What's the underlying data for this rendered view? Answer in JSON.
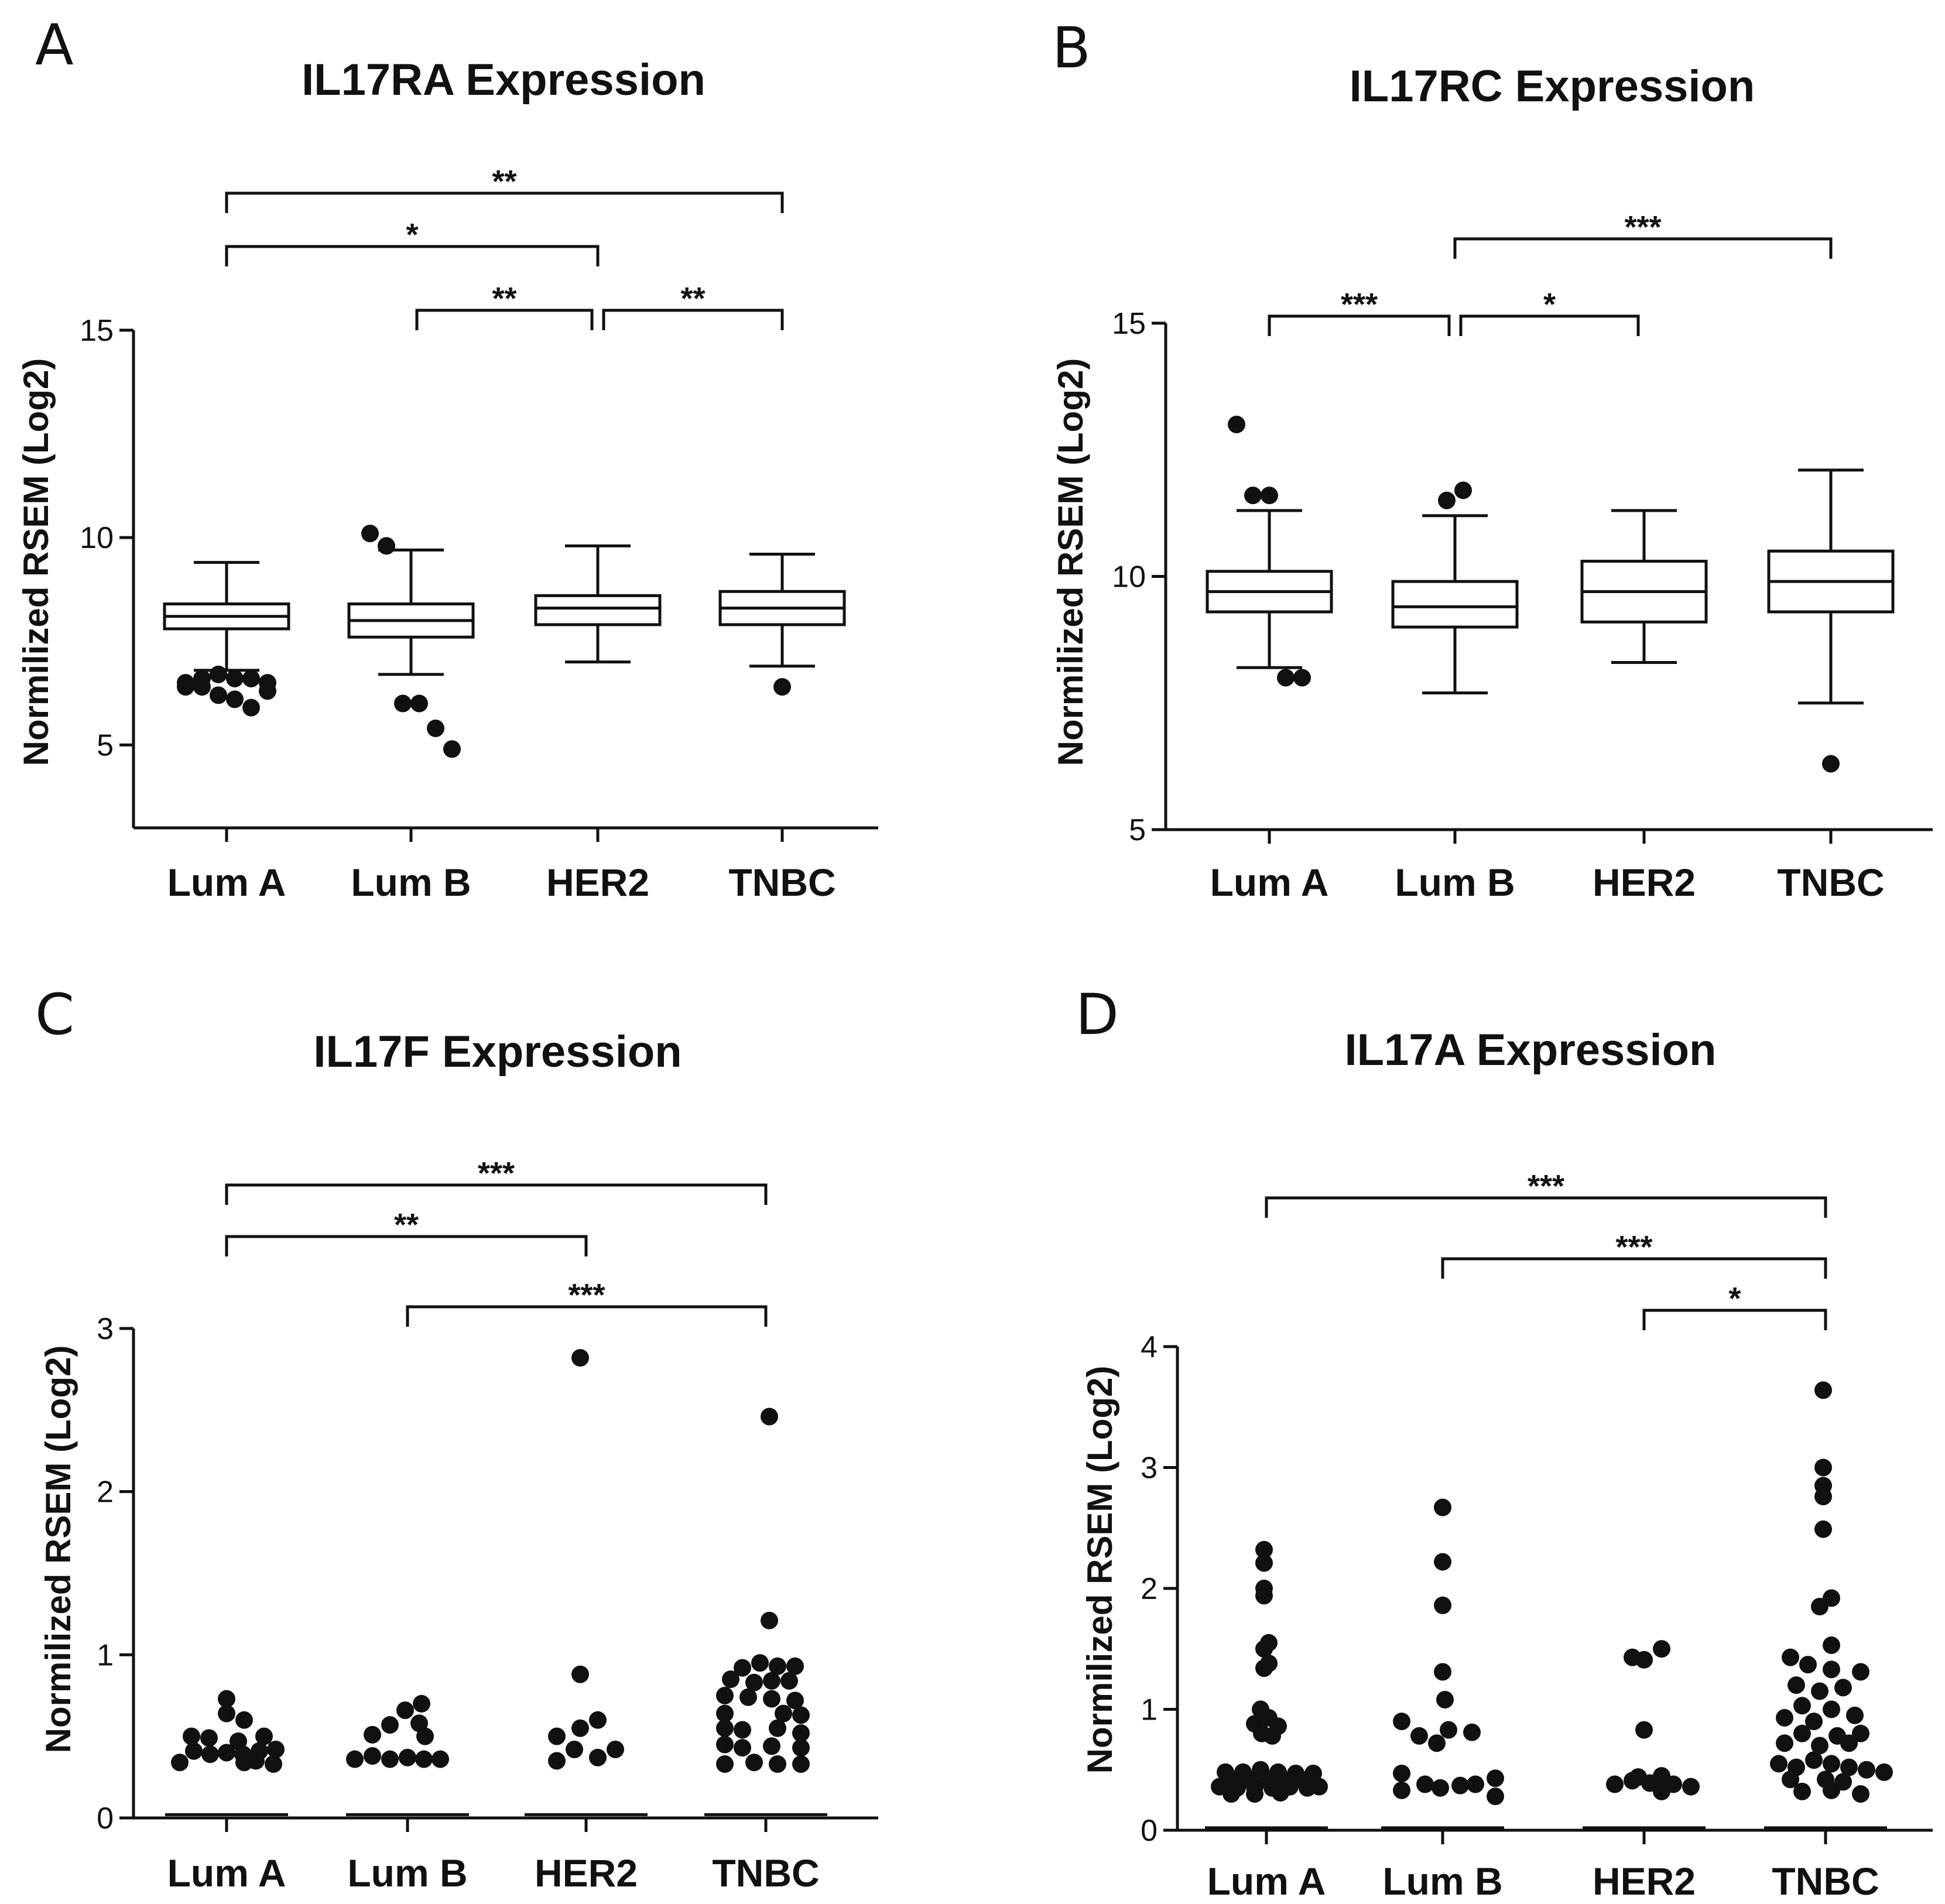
{
  "chart_data": [
    {
      "type": "box",
      "panel": "A",
      "title": "IL17RA Expression",
      "xlabel": "",
      "ylabel": "Normilized RSEM (Log2)",
      "ylim": [
        3,
        15
      ],
      "yticks": [
        5,
        10,
        15
      ],
      "categories": [
        "Lum A",
        "Lum B",
        "HER2",
        "TNBC"
      ],
      "boxes": [
        {
          "whisker_low": 6.8,
          "q1": 7.8,
          "median": 8.1,
          "q3": 8.4,
          "whisker_high": 9.4,
          "outliers": [
            6.5,
            6.6,
            6.7,
            6.6,
            6.6,
            6.5,
            6.4,
            6.4,
            6.2,
            6.1,
            5.9,
            6.3
          ]
        },
        {
          "whisker_low": 6.7,
          "q1": 7.6,
          "median": 8.0,
          "q3": 8.4,
          "whisker_high": 9.7,
          "outliers": [
            10.1,
            9.8,
            6.0,
            6.0,
            5.4,
            4.9
          ]
        },
        {
          "whisker_low": 7.0,
          "q1": 7.9,
          "median": 8.3,
          "q3": 8.6,
          "whisker_high": 9.8,
          "outliers": []
        },
        {
          "whisker_low": 6.9,
          "q1": 7.9,
          "median": 8.3,
          "q3": 8.7,
          "whisker_high": 9.6,
          "outliers": [
            6.4
          ]
        }
      ],
      "significance": [
        {
          "from": 0,
          "to": 3,
          "label": "**"
        },
        {
          "from": 0,
          "to": 2,
          "label": "*"
        },
        {
          "from": 1,
          "to": 2,
          "label": "**"
        },
        {
          "from": 2,
          "to": 3,
          "label": "**"
        }
      ]
    },
    {
      "type": "box",
      "panel": "B",
      "title": "IL17RC Expression",
      "xlabel": "",
      "ylabel": "Normilized RSEM (Log2)",
      "ylim": [
        5,
        15
      ],
      "yticks": [
        5,
        10,
        15
      ],
      "categories": [
        "Lum A",
        "Lum B",
        "HER2",
        "TNBC"
      ],
      "boxes": [
        {
          "whisker_low": 8.2,
          "q1": 9.3,
          "median": 9.7,
          "q3": 10.1,
          "whisker_high": 11.3,
          "outliers": [
            13.0,
            11.6,
            11.6,
            8.0,
            8.0
          ]
        },
        {
          "whisker_low": 7.7,
          "q1": 9.0,
          "median": 9.4,
          "q3": 9.9,
          "whisker_high": 11.2,
          "outliers": [
            11.5,
            11.7
          ]
        },
        {
          "whisker_low": 8.3,
          "q1": 9.1,
          "median": 9.7,
          "q3": 10.3,
          "whisker_high": 11.3,
          "outliers": []
        },
        {
          "whisker_low": 7.5,
          "q1": 9.3,
          "median": 9.9,
          "q3": 10.5,
          "whisker_high": 12.1,
          "outliers": [
            6.3
          ]
        }
      ],
      "significance": [
        {
          "from": 1,
          "to": 3,
          "label": "***"
        },
        {
          "from": 0,
          "to": 1,
          "label": "***"
        },
        {
          "from": 1,
          "to": 2,
          "label": "*"
        }
      ]
    },
    {
      "type": "scatter",
      "panel": "C",
      "title": "IL17F Expression",
      "xlabel": "",
      "ylabel": "Normilized RSEM (Log2)",
      "ylim": [
        0,
        3
      ],
      "yticks": [
        0,
        1,
        2,
        3
      ],
      "categories": [
        "Lum A",
        "Lum B",
        "HER2",
        "TNBC"
      ],
      "baseline": 0.02,
      "series": [
        {
          "name": "Lum A",
          "points": [
            {
              "dx": 0,
              "y": 0.73
            },
            {
              "dx": 0,
              "y": 0.64
            },
            {
              "dx": 0.15,
              "y": 0.6
            },
            {
              "dx": -0.3,
              "y": 0.5
            },
            {
              "dx": -0.15,
              "y": 0.49
            },
            {
              "dx": 0.1,
              "y": 0.47
            },
            {
              "dx": 0.32,
              "y": 0.5
            },
            {
              "dx": -0.28,
              "y": 0.41
            },
            {
              "dx": -0.14,
              "y": 0.39
            },
            {
              "dx": 0,
              "y": 0.4
            },
            {
              "dx": 0.14,
              "y": 0.39
            },
            {
              "dx": 0.28,
              "y": 0.41
            },
            {
              "dx": 0.42,
              "y": 0.42
            },
            {
              "dx": -0.4,
              "y": 0.34
            },
            {
              "dx": 0.25,
              "y": 0.35
            },
            {
              "dx": 0.4,
              "y": 0.33
            },
            {
              "dx": 0.15,
              "y": 0.34
            }
          ]
        },
        {
          "name": "Lum B",
          "points": [
            {
              "dx": 0.12,
              "y": 0.7
            },
            {
              "dx": -0.02,
              "y": 0.66
            },
            {
              "dx": -0.15,
              "y": 0.57
            },
            {
              "dx": 0.1,
              "y": 0.58
            },
            {
              "dx": -0.3,
              "y": 0.51
            },
            {
              "dx": 0.15,
              "y": 0.5
            },
            {
              "dx": -0.3,
              "y": 0.38
            },
            {
              "dx": -0.15,
              "y": 0.36
            },
            {
              "dx": 0,
              "y": 0.37
            },
            {
              "dx": 0.14,
              "y": 0.36
            },
            {
              "dx": 0.28,
              "y": 0.36
            },
            {
              "dx": -0.45,
              "y": 0.36
            }
          ]
        },
        {
          "name": "HER2",
          "points": [
            {
              "dx": -0.05,
              "y": 2.82
            },
            {
              "dx": -0.05,
              "y": 0.88
            },
            {
              "dx": 0.1,
              "y": 0.6
            },
            {
              "dx": -0.05,
              "y": 0.55
            },
            {
              "dx": -0.25,
              "y": 0.5
            },
            {
              "dx": -0.25,
              "y": 0.35
            },
            {
              "dx": -0.1,
              "y": 0.42
            },
            {
              "dx": 0.1,
              "y": 0.37
            },
            {
              "dx": 0.25,
              "y": 0.42
            }
          ]
        },
        {
          "name": "TNBC",
          "points": [
            {
              "dx": 0.03,
              "y": 2.46
            },
            {
              "dx": 0.03,
              "y": 1.21
            },
            {
              "dx": -0.2,
              "y": 0.92
            },
            {
              "dx": -0.05,
              "y": 0.95
            },
            {
              "dx": 0.1,
              "y": 0.93
            },
            {
              "dx": 0.25,
              "y": 0.93
            },
            {
              "dx": -0.3,
              "y": 0.85
            },
            {
              "dx": -0.1,
              "y": 0.83
            },
            {
              "dx": 0.05,
              "y": 0.84
            },
            {
              "dx": 0.2,
              "y": 0.84
            },
            {
              "dx": -0.35,
              "y": 0.75
            },
            {
              "dx": -0.15,
              "y": 0.74
            },
            {
              "dx": 0.05,
              "y": 0.73
            },
            {
              "dx": 0.25,
              "y": 0.72
            },
            {
              "dx": -0.35,
              "y": 0.64
            },
            {
              "dx": 0.15,
              "y": 0.64
            },
            {
              "dx": 0.3,
              "y": 0.63
            },
            {
              "dx": -0.35,
              "y": 0.55
            },
            {
              "dx": -0.2,
              "y": 0.54
            },
            {
              "dx": 0.1,
              "y": 0.55
            },
            {
              "dx": 0.3,
              "y": 0.52
            },
            {
              "dx": -0.35,
              "y": 0.45
            },
            {
              "dx": -0.2,
              "y": 0.43
            },
            {
              "dx": 0.05,
              "y": 0.44
            },
            {
              "dx": 0.3,
              "y": 0.43
            },
            {
              "dx": -0.35,
              "y": 0.33
            },
            {
              "dx": -0.1,
              "y": 0.34
            },
            {
              "dx": 0.1,
              "y": 0.33
            },
            {
              "dx": 0.3,
              "y": 0.33
            }
          ]
        }
      ],
      "significance": [
        {
          "from": 0,
          "to": 3,
          "label": "***"
        },
        {
          "from": 0,
          "to": 2,
          "label": "**"
        },
        {
          "from": 1,
          "to": 3,
          "label": "***"
        }
      ]
    },
    {
      "type": "scatter",
      "panel": "D",
      "title": "IL17A Expression",
      "xlabel": "",
      "ylabel": "Normilized RSEM (Log2)",
      "ylim": [
        0,
        4
      ],
      "yticks": [
        0,
        1,
        2,
        3,
        4
      ],
      "categories": [
        "Lum A",
        "Lum B",
        "HER2",
        "TNBC"
      ],
      "baseline": 0.02,
      "series": [
        {
          "name": "Lum A",
          "points": [
            {
              "dx": -0.02,
              "y": 2.32
            },
            {
              "dx": -0.02,
              "y": 2.21
            },
            {
              "dx": -0.02,
              "y": 2.0
            },
            {
              "dx": -0.02,
              "y": 1.94
            },
            {
              "dx": 0.02,
              "y": 1.55
            },
            {
              "dx": -0.02,
              "y": 1.5
            },
            {
              "dx": 0.02,
              "y": 1.38
            },
            {
              "dx": -0.02,
              "y": 1.34
            },
            {
              "dx": -0.05,
              "y": 1.0
            },
            {
              "dx": 0.02,
              "y": 0.93
            },
            {
              "dx": -0.1,
              "y": 0.88
            },
            {
              "dx": 0.1,
              "y": 0.86
            },
            {
              "dx": -0.04,
              "y": 0.8
            },
            {
              "dx": 0.05,
              "y": 0.78
            },
            {
              "dx": -0.35,
              "y": 0.48
            },
            {
              "dx": -0.2,
              "y": 0.48
            },
            {
              "dx": -0.05,
              "y": 0.5
            },
            {
              "dx": 0.1,
              "y": 0.48
            },
            {
              "dx": 0.25,
              "y": 0.47
            },
            {
              "dx": 0.4,
              "y": 0.47
            },
            {
              "dx": -0.3,
              "y": 0.42
            },
            {
              "dx": -0.15,
              "y": 0.42
            },
            {
              "dx": 0,
              "y": 0.42
            },
            {
              "dx": 0.15,
              "y": 0.41
            },
            {
              "dx": 0.3,
              "y": 0.42
            },
            {
              "dx": -0.4,
              "y": 0.36
            },
            {
              "dx": -0.25,
              "y": 0.35
            },
            {
              "dx": -0.1,
              "y": 0.36
            },
            {
              "dx": 0.05,
              "y": 0.35
            },
            {
              "dx": 0.2,
              "y": 0.36
            },
            {
              "dx": 0.35,
              "y": 0.35
            },
            {
              "dx": 0.45,
              "y": 0.36
            },
            {
              "dx": -0.3,
              "y": 0.3
            },
            {
              "dx": -0.1,
              "y": 0.3
            },
            {
              "dx": 0.12,
              "y": 0.31
            }
          ]
        },
        {
          "name": "Lum B",
          "points": [
            {
              "dx": 0,
              "y": 2.67
            },
            {
              "dx": 0,
              "y": 2.22
            },
            {
              "dx": 0,
              "y": 1.86
            },
            {
              "dx": 0,
              "y": 1.31
            },
            {
              "dx": 0.02,
              "y": 1.08
            },
            {
              "dx": -0.35,
              "y": 0.9
            },
            {
              "dx": -0.2,
              "y": 0.78
            },
            {
              "dx": 0.05,
              "y": 0.83
            },
            {
              "dx": 0.25,
              "y": 0.81
            },
            {
              "dx": -0.05,
              "y": 0.72
            },
            {
              "dx": -0.35,
              "y": 0.47
            },
            {
              "dx": 0.45,
              "y": 0.43
            },
            {
              "dx": -0.15,
              "y": 0.38
            },
            {
              "dx": 0.15,
              "y": 0.37
            },
            {
              "dx": 0.28,
              "y": 0.38
            },
            {
              "dx": -0.02,
              "y": 0.35
            },
            {
              "dx": -0.35,
              "y": 0.33
            },
            {
              "dx": 0.45,
              "y": 0.28
            }
          ]
        },
        {
          "name": "HER2",
          "points": [
            {
              "dx": -0.1,
              "y": 1.43
            },
            {
              "dx": 0,
              "y": 1.41
            },
            {
              "dx": 0.15,
              "y": 1.5
            },
            {
              "dx": 0,
              "y": 0.83
            },
            {
              "dx": -0.05,
              "y": 0.44
            },
            {
              "dx": 0.15,
              "y": 0.45
            },
            {
              "dx": -0.25,
              "y": 0.38
            },
            {
              "dx": -0.1,
              "y": 0.41
            },
            {
              "dx": 0.05,
              "y": 0.39
            },
            {
              "dx": 0.25,
              "y": 0.38
            },
            {
              "dx": 0.4,
              "y": 0.36
            },
            {
              "dx": 0.15,
              "y": 0.32
            }
          ]
        },
        {
          "name": "TNBC",
          "points": [
            {
              "dx": -0.02,
              "y": 3.64
            },
            {
              "dx": -0.02,
              "y": 3.0
            },
            {
              "dx": -0.02,
              "y": 2.85
            },
            {
              "dx": -0.02,
              "y": 2.76
            },
            {
              "dx": -0.02,
              "y": 2.49
            },
            {
              "dx": 0.05,
              "y": 1.92
            },
            {
              "dx": -0.05,
              "y": 1.85
            },
            {
              "dx": 0.05,
              "y": 1.53
            },
            {
              "dx": -0.3,
              "y": 1.43
            },
            {
              "dx": -0.15,
              "y": 1.37
            },
            {
              "dx": 0.05,
              "y": 1.33
            },
            {
              "dx": 0.3,
              "y": 1.31
            },
            {
              "dx": -0.25,
              "y": 1.2
            },
            {
              "dx": -0.05,
              "y": 1.15
            },
            {
              "dx": 0.15,
              "y": 1.18
            },
            {
              "dx": -0.2,
              "y": 1.03
            },
            {
              "dx": 0.05,
              "y": 1.0
            },
            {
              "dx": -0.35,
              "y": 0.93
            },
            {
              "dx": -0.1,
              "y": 0.9
            },
            {
              "dx": 0.25,
              "y": 0.95
            },
            {
              "dx": -0.2,
              "y": 0.8
            },
            {
              "dx": 0.1,
              "y": 0.78
            },
            {
              "dx": 0.3,
              "y": 0.8
            },
            {
              "dx": -0.35,
              "y": 0.72
            },
            {
              "dx": -0.05,
              "y": 0.7
            },
            {
              "dx": 0.2,
              "y": 0.72
            },
            {
              "dx": -0.4,
              "y": 0.55
            },
            {
              "dx": -0.25,
              "y": 0.52
            },
            {
              "dx": -0.1,
              "y": 0.58
            },
            {
              "dx": 0.05,
              "y": 0.55
            },
            {
              "dx": 0.2,
              "y": 0.52
            },
            {
              "dx": 0.35,
              "y": 0.5
            },
            {
              "dx": 0.5,
              "y": 0.48
            },
            {
              "dx": -0.3,
              "y": 0.42
            },
            {
              "dx": 0,
              "y": 0.42
            },
            {
              "dx": 0.15,
              "y": 0.4
            },
            {
              "dx": -0.2,
              "y": 0.32
            },
            {
              "dx": 0.05,
              "y": 0.33
            },
            {
              "dx": 0.3,
              "y": 0.3
            }
          ]
        }
      ],
      "significance": [
        {
          "from": 0,
          "to": 3,
          "label": "***"
        },
        {
          "from": 1,
          "to": 3,
          "label": "***"
        },
        {
          "from": 2,
          "to": 3,
          "label": "*"
        }
      ]
    }
  ]
}
